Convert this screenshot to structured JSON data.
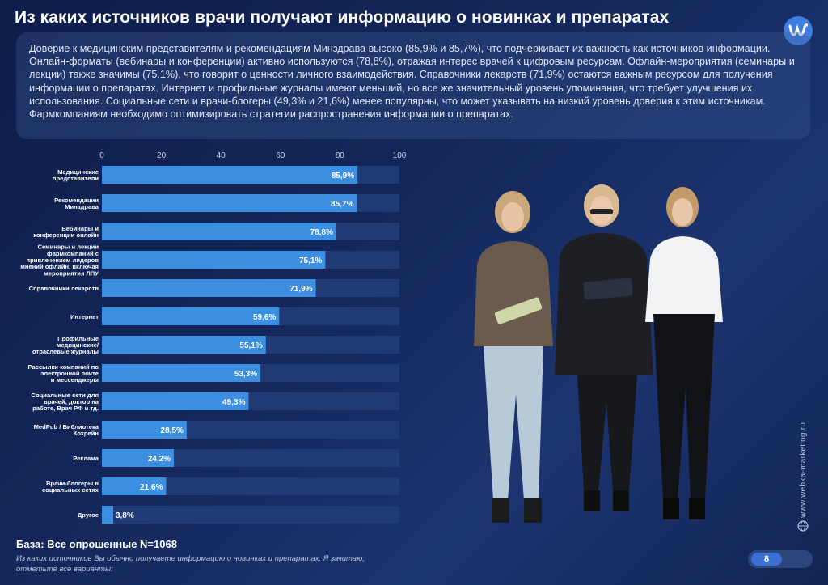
{
  "header": {
    "title": "Из каких источников врачи получают информацию о новинках и препаратах"
  },
  "summary": {
    "text": "Доверие к медицинским представителям и рекомендациям Минздрава высоко (85,9% и 85,7%), что подчеркивает их важность как источников информации. Онлайн-форматы (вебинары и конференции) активно используются (78,8%), отражая интерес врачей к цифровым ресурсам. Офлайн-мероприятия (семинары и лекции) также значимы (75.1%), что говорит о ценности личного взаимодействия. Справочники лекарств (71,9%) остаются важным ресурсом для получения информации о препаратах. Интернет и профильные журналы имеют меньший, но все же значительный уровень упоминания, что требует улучшения их использования. Социальные сети и врачи-блогеры (49,3% и 21,6%) менее популярны, что может указывать на низкий уровень доверия к этим источникам. Фармкомпаниям необходимо оптимизировать стратегии распространения информации о препаратах."
  },
  "chart_data": {
    "type": "bar",
    "orientation": "horizontal",
    "xlim": [
      0,
      100
    ],
    "ticks": [
      "0",
      "20",
      "40",
      "60",
      "80",
      "100"
    ],
    "tick_position": "top",
    "bar_color": "#3b8ee0",
    "track_color": "#1f3a74",
    "categories": [
      [
        "Медицинские",
        "представители"
      ],
      [
        "Рекомендации",
        "Минздрава"
      ],
      [
        "Вебинары и",
        "конференции онлайн"
      ],
      [
        "Семинары и лекции",
        "фармкомпаний с",
        "привлечением лидеров",
        "мнений офлайн, включая",
        "мероприятия ЛПУ"
      ],
      [
        "Справочники лекарств"
      ],
      [
        "Интернет"
      ],
      [
        "Профильные",
        "медицинские/",
        "отраслевые журналы"
      ],
      [
        "Рассылки компаний по",
        "электронной почте",
        "и мессенджеры"
      ],
      [
        "Социальные сети для",
        "врачей, доктор на",
        "работе, Врач РФ и тд."
      ],
      [
        "MedPub / Библиотека",
        "Кохрейн"
      ],
      [
        "Реклама"
      ],
      [
        "Врачи-блогеры в",
        "социальных сетях"
      ],
      [
        "Другое"
      ]
    ],
    "values": [
      85.9,
      85.7,
      78.8,
      75.1,
      71.9,
      59.6,
      55.1,
      53.3,
      49.3,
      28.5,
      24.2,
      21.6,
      3.8
    ],
    "value_labels": [
      "85,9%",
      "85,7%",
      "78,8%",
      "75,1%",
      "71,9%",
      "59,6%",
      "55,1%",
      "53,3%",
      "49,3%",
      "28,5%",
      "24,2%",
      "21,6%",
      "3,8%"
    ]
  },
  "footer": {
    "base": "База: Все опрошенные N=1068",
    "question": "Из каких источников Вы обычно получаете информацию о новинках и препаратах: Я зачитаю, отметьте все варианты:",
    "website": "www.webka-marketing.ru",
    "page_number": "8"
  },
  "colors": {
    "background": "#14285c",
    "accent": "#3b8ee0",
    "logo": "#3d7fe0"
  }
}
